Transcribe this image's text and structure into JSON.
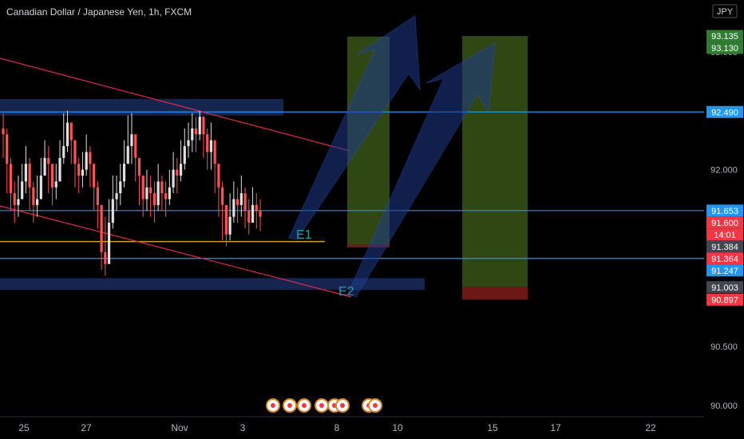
{
  "header": {
    "title": "Canadian Dollar / Japanese Yen, 1h, FXCM"
  },
  "currency": "JPY",
  "colors": {
    "background": "#000000",
    "candle_up": "#e0e0e0",
    "candle_down": "#ff5252",
    "zone": "#1a2a5e",
    "hline": "#2196f3",
    "trend": "#e0294a",
    "support": "#c9a227",
    "target": "#3f5f1a",
    "stop": "#7a1a1a",
    "arrow": "#1e3a8a",
    "price_blue": "#2196f3",
    "price_red": "#f23645",
    "price_gray": "#434651",
    "price_green": "#2e7d32"
  },
  "chart_data": {
    "type": "candlestick",
    "symbol": "CADJPY",
    "timeframe": "1h",
    "ylim": [
      89.85,
      93.25
    ],
    "x_ticks": [
      "25",
      "27",
      "Nov",
      "3",
      "8",
      "10",
      "15",
      "17",
      "22"
    ],
    "y_ticks": [
      "93.000",
      "92.000",
      "90.500",
      "90.000"
    ],
    "price_labels": [
      {
        "text": "93.135",
        "value": 93.135,
        "style": "green"
      },
      {
        "text": "93.130",
        "value": 93.13,
        "style": "green"
      },
      {
        "text": "92.490",
        "value": 92.49,
        "style": "blue"
      },
      {
        "text": "91.653",
        "value": 91.653,
        "style": "blue"
      },
      {
        "text": "91.600",
        "value": 91.6,
        "style": "red"
      },
      {
        "text": "14:01",
        "value": 91.56,
        "style": "red"
      },
      {
        "text": "91.384",
        "value": 91.384,
        "style": "gray"
      },
      {
        "text": "91.364",
        "value": 91.364,
        "style": "red"
      },
      {
        "text": "91.247",
        "value": 91.247,
        "style": "blue"
      },
      {
        "text": "91.003",
        "value": 91.003,
        "style": "gray"
      },
      {
        "text": "90.897",
        "value": 90.897,
        "style": "red"
      }
    ],
    "horizontal_lines": [
      92.49,
      91.653,
      91.247
    ],
    "support_line": 91.39,
    "zones": [
      {
        "from": 92.46,
        "to": 92.6
      },
      {
        "from": 90.98,
        "to": 91.08
      }
    ],
    "positions": [
      {
        "entry": 91.364,
        "target": 93.13,
        "stop": 91.34
      },
      {
        "entry": 91.003,
        "target": 93.135,
        "stop": 90.897
      }
    ],
    "annotations": [
      "E1",
      "E2"
    ],
    "closes": [
      92.3,
      92.05,
      91.8,
      91.7,
      91.75,
      91.9,
      92.05,
      91.85,
      91.7,
      91.75,
      91.95,
      92.1,
      92.05,
      91.85,
      91.9,
      92.1,
      92.2,
      92.4,
      92.25,
      92.05,
      91.95,
      92.0,
      92.15,
      92.05,
      91.85,
      91.7,
      91.3,
      91.2,
      91.55,
      91.75,
      91.8,
      91.9,
      92.05,
      92.2,
      92.3,
      92.1,
      91.95,
      91.75,
      91.85,
      91.8,
      91.7,
      91.9,
      91.8,
      91.75,
      91.85,
      92.0,
      91.95,
      92.05,
      92.2,
      92.25,
      92.35,
      92.3,
      92.45,
      92.3,
      92.15,
      92.25,
      92.05,
      91.85,
      91.7,
      91.45,
      91.6,
      91.75,
      91.7,
      91.8,
      91.65,
      91.55,
      91.7,
      91.65,
      91.6
    ],
    "highs": [
      92.48,
      92.35,
      92.1,
      91.9,
      91.95,
      92.05,
      92.2,
      92.1,
      91.9,
      91.95,
      92.1,
      92.25,
      92.2,
      92.05,
      92.05,
      92.25,
      92.48,
      92.5,
      92.4,
      92.25,
      92.1,
      92.15,
      92.3,
      92.2,
      92.05,
      91.9,
      91.7,
      91.6,
      91.75,
      91.95,
      91.95,
      92.05,
      92.25,
      92.46,
      92.48,
      92.3,
      92.1,
      91.95,
      92.0,
      91.95,
      91.9,
      92.05,
      91.95,
      91.9,
      92.0,
      92.15,
      92.1,
      92.25,
      92.35,
      92.4,
      92.48,
      92.45,
      92.5,
      92.45,
      92.35,
      92.4,
      92.25,
      92.05,
      91.9,
      91.65,
      91.8,
      91.9,
      91.85,
      91.95,
      91.85,
      91.75,
      91.85,
      91.8,
      91.75
    ],
    "lows": [
      92.1,
      91.8,
      91.65,
      91.55,
      91.6,
      91.75,
      91.8,
      91.65,
      91.55,
      91.6,
      91.8,
      91.95,
      91.8,
      91.7,
      91.75,
      91.95,
      92.05,
      92.15,
      92.05,
      91.85,
      91.8,
      91.85,
      91.95,
      91.85,
      91.65,
      91.5,
      91.15,
      91.1,
      91.2,
      91.5,
      91.65,
      91.7,
      91.85,
      92.05,
      92.05,
      91.9,
      91.7,
      91.6,
      91.65,
      91.6,
      91.55,
      91.65,
      91.65,
      91.6,
      91.7,
      91.8,
      91.8,
      91.9,
      92.0,
      92.1,
      92.15,
      92.15,
      92.25,
      92.1,
      92.0,
      92.0,
      91.8,
      91.6,
      91.4,
      91.35,
      91.4,
      91.55,
      91.55,
      91.6,
      91.5,
      91.45,
      91.55,
      91.5,
      91.48
    ],
    "event_icons": 8
  }
}
